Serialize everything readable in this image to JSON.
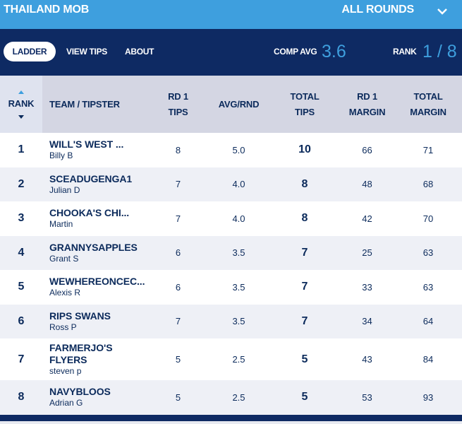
{
  "header": {
    "comp_name": "THAILAND MOB",
    "rounds_select": "ALL ROUNDS"
  },
  "nav": {
    "tabs": [
      {
        "label": "LADDER",
        "active": true
      },
      {
        "label": "VIEW TIPS",
        "active": false
      },
      {
        "label": "ABOUT",
        "active": false
      }
    ],
    "comp_avg_label": "COMP AVG",
    "comp_avg_value": "3.6",
    "rank_label": "RANK",
    "rank_value": "1 / 8"
  },
  "table": {
    "columns": {
      "rank": "RANK",
      "team": "TEAM / TIPSTER",
      "rd1_tips_l1": "RD 1",
      "rd1_tips_l2": "TIPS",
      "avg": "AVG/RND",
      "total_tips_l1": "TOTAL",
      "total_tips_l2": "TIPS",
      "rd1_margin_l1": "RD 1",
      "rd1_margin_l2": "MARGIN",
      "total_margin_l1": "TOTAL",
      "total_margin_l2": "MARGIN"
    },
    "rows": [
      {
        "rank": "1",
        "team": "WILL'S WEST ...",
        "tipster": "Billy B",
        "rd1_tips": "8",
        "avg": "5.0",
        "total_tips": "10",
        "rd1_margin": "66",
        "total_margin": "71"
      },
      {
        "rank": "2",
        "team": "SCEADUGENGA1",
        "tipster": "Julian D",
        "rd1_tips": "7",
        "avg": "4.0",
        "total_tips": "8",
        "rd1_margin": "48",
        "total_margin": "68"
      },
      {
        "rank": "3",
        "team": "CHOOKA'S CHI...",
        "tipster": "Martin",
        "rd1_tips": "7",
        "avg": "4.0",
        "total_tips": "8",
        "rd1_margin": "42",
        "total_margin": "70"
      },
      {
        "rank": "4",
        "team": "GRANNYSAPPLES",
        "tipster": "Grant S",
        "rd1_tips": "6",
        "avg": "3.5",
        "total_tips": "7",
        "rd1_margin": "25",
        "total_margin": "63"
      },
      {
        "rank": "5",
        "team": "WEWHEREONCEC...",
        "tipster": "Alexis R",
        "rd1_tips": "6",
        "avg": "3.5",
        "total_tips": "7",
        "rd1_margin": "33",
        "total_margin": "63"
      },
      {
        "rank": "6",
        "team": "RIPS SWANS",
        "tipster": "Ross P",
        "rd1_tips": "7",
        "avg": "3.5",
        "total_tips": "7",
        "rd1_margin": "34",
        "total_margin": "64"
      },
      {
        "rank": "7",
        "team": "FARMERJO'S FLYERS",
        "tipster": "steven p",
        "rd1_tips": "5",
        "avg": "2.5",
        "total_tips": "5",
        "rd1_margin": "43",
        "total_margin": "84"
      },
      {
        "rank": "8",
        "team": "NAVYBLOOS",
        "tipster": "Adrian G",
        "rd1_tips": "5",
        "avg": "2.5",
        "total_tips": "5",
        "rd1_margin": "53",
        "total_margin": "93"
      }
    ]
  },
  "colors": {
    "accent_blue": "#3e9fde",
    "navy": "#0e2a63",
    "header_grey": "#d4d6e3"
  }
}
